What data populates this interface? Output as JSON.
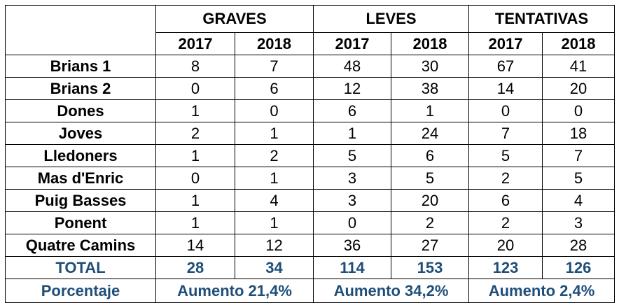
{
  "groups": [
    "GRAVES",
    "LEVES",
    "TENTATIVAS"
  ],
  "years": [
    "2017",
    "2018",
    "2017",
    "2018",
    "2017",
    "2018"
  ],
  "rows": [
    {
      "label": "Brians 1",
      "values": [
        "8",
        "7",
        "48",
        "30",
        "67",
        "41"
      ]
    },
    {
      "label": "Brians 2",
      "values": [
        "0",
        "6",
        "12",
        "38",
        "14",
        "20"
      ]
    },
    {
      "label": "Dones",
      "values": [
        "1",
        "0",
        "6",
        "1",
        "0",
        "0"
      ]
    },
    {
      "label": "Joves",
      "values": [
        "2",
        "1",
        "1",
        "24",
        "7",
        "18"
      ]
    },
    {
      "label": "Lledoners",
      "values": [
        "1",
        "2",
        "5",
        "6",
        "5",
        "7"
      ]
    },
    {
      "label": "Mas d'Enric",
      "values": [
        "0",
        "1",
        "3",
        "5",
        "2",
        "5"
      ]
    },
    {
      "label": "Puig Basses",
      "values": [
        "1",
        "4",
        "3",
        "20",
        "6",
        "4"
      ]
    },
    {
      "label": "Ponent",
      "values": [
        "1",
        "1",
        "0",
        "2",
        "2",
        "3"
      ]
    },
    {
      "label": "Quatre Camins",
      "values": [
        "14",
        "12",
        "36",
        "27",
        "20",
        "28"
      ]
    }
  ],
  "total": {
    "label": "TOTAL",
    "values": [
      "28",
      "34",
      "114",
      "153",
      "123",
      "126"
    ]
  },
  "percentage": {
    "label": "Porcentaje",
    "values": [
      "Aumento 21,4%",
      "Aumento 34,2%",
      "Aumento 2,4%"
    ]
  },
  "colors": {
    "accent_text": "#1f4e79",
    "border": "#000000",
    "background": "#ffffff"
  }
}
